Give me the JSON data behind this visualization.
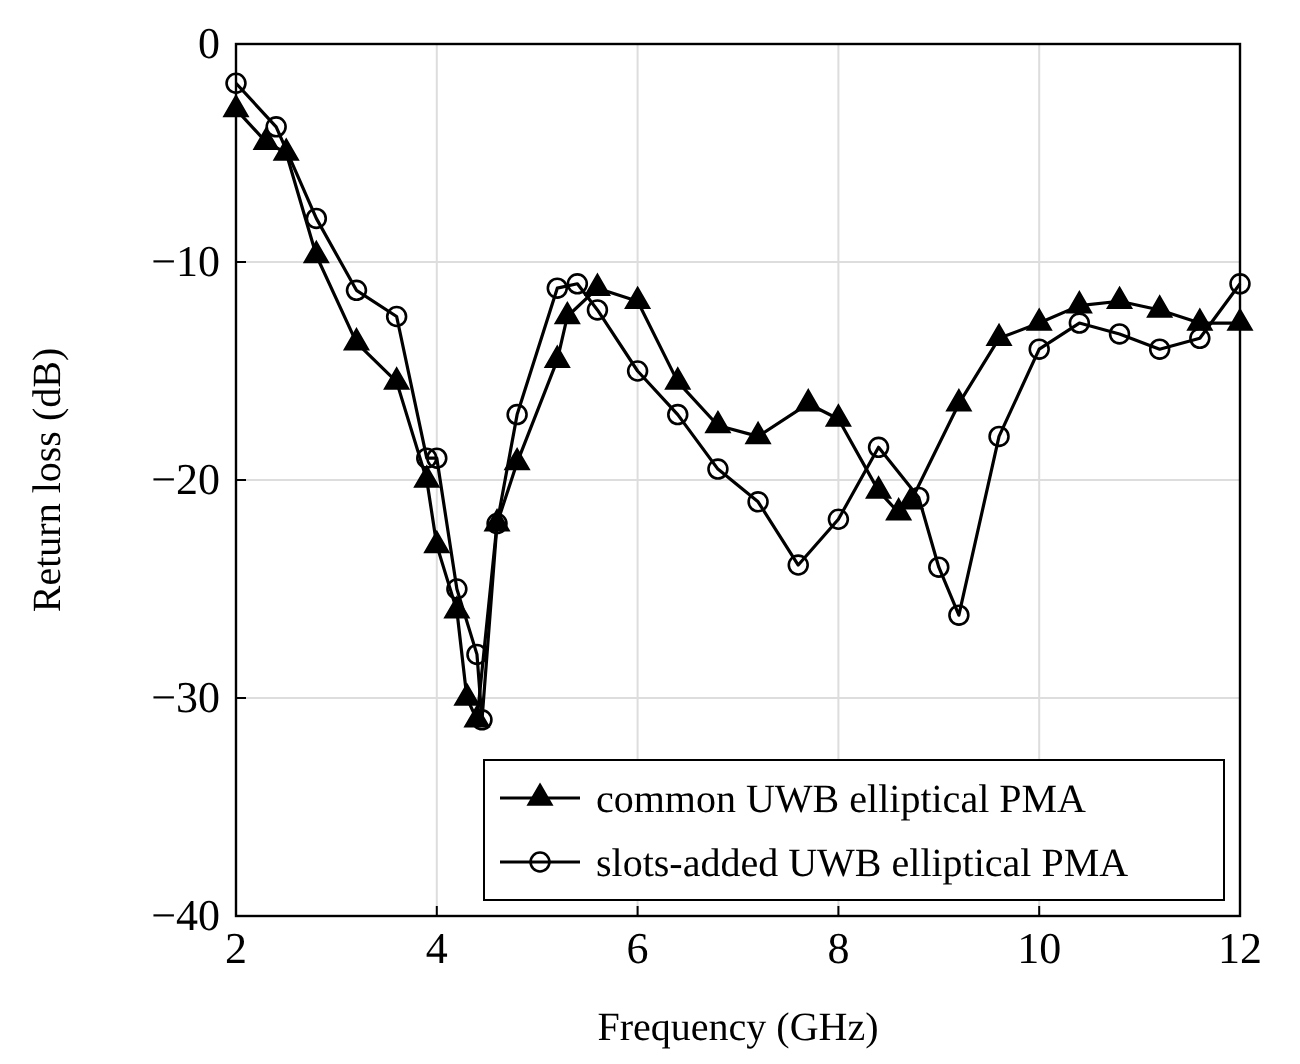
{
  "chart_data": {
    "type": "line",
    "xlabel": "Frequency (GHz)",
    "ylabel": "Return loss (dB)",
    "xlim": [
      2,
      12
    ],
    "xticks": [
      2,
      4,
      6,
      8,
      10,
      12
    ],
    "ylim": [
      -40,
      0
    ],
    "yticks": [
      -40,
      -30,
      -20,
      -10,
      0
    ],
    "grid": true,
    "legend": "bottom right",
    "series": [
      {
        "name": "common UWB elliptical PMA",
        "color": "#000000",
        "marker": "triangle",
        "x": [
          2,
          2.3,
          2.5,
          2.8,
          3.2,
          3.6,
          3.9,
          4.0,
          4.2,
          4.3,
          4.4,
          4.6,
          4.8,
          5.2,
          5.3,
          5.6,
          6.0,
          6.4,
          6.8,
          7.2,
          7.7,
          8.0,
          8.4,
          8.6,
          8.72,
          9.2,
          9.6,
          10.0,
          10.4,
          10.8,
          11.2,
          11.6,
          12
        ],
        "values": [
          -3,
          -4.5,
          -5,
          -9.7,
          -13.7,
          -15.5,
          -20,
          -23,
          -26,
          -30,
          -31,
          -22,
          -19.2,
          -14.5,
          -12.5,
          -11.2,
          -11.8,
          -15.5,
          -17.5,
          -18,
          -16.5,
          -17.2,
          -20.5,
          -21.5,
          -21,
          -16.5,
          -13.5,
          -12.8,
          -12,
          -11.8,
          -12.2,
          -12.8,
          -12.8
        ]
      },
      {
        "name": "slots-added UWB elliptical PMA",
        "color": "#000000",
        "marker": "circle",
        "x": [
          2,
          2.4,
          2.8,
          3.2,
          3.6,
          3.9,
          4.0,
          4.2,
          4.4,
          4.45,
          4.6,
          4.8,
          5.2,
          5.4,
          5.6,
          6.0,
          6.4,
          6.8,
          7.2,
          7.6,
          8.0,
          8.4,
          8.8,
          9.0,
          9.2,
          9.6,
          10.0,
          10.4,
          10.8,
          11.2,
          11.6,
          12
        ],
        "values": [
          -1.8,
          -3.8,
          -8,
          -11.3,
          -12.5,
          -19,
          -19,
          -25,
          -28,
          -31,
          -22,
          -17,
          -11.2,
          -11,
          -12.2,
          -15,
          -17,
          -19.5,
          -21,
          -23.9,
          -21.8,
          -18.5,
          -20.8,
          -24,
          -26.2,
          -18,
          -14,
          -12.8,
          -13.3,
          -14,
          -13.5,
          -11
        ]
      }
    ]
  }
}
